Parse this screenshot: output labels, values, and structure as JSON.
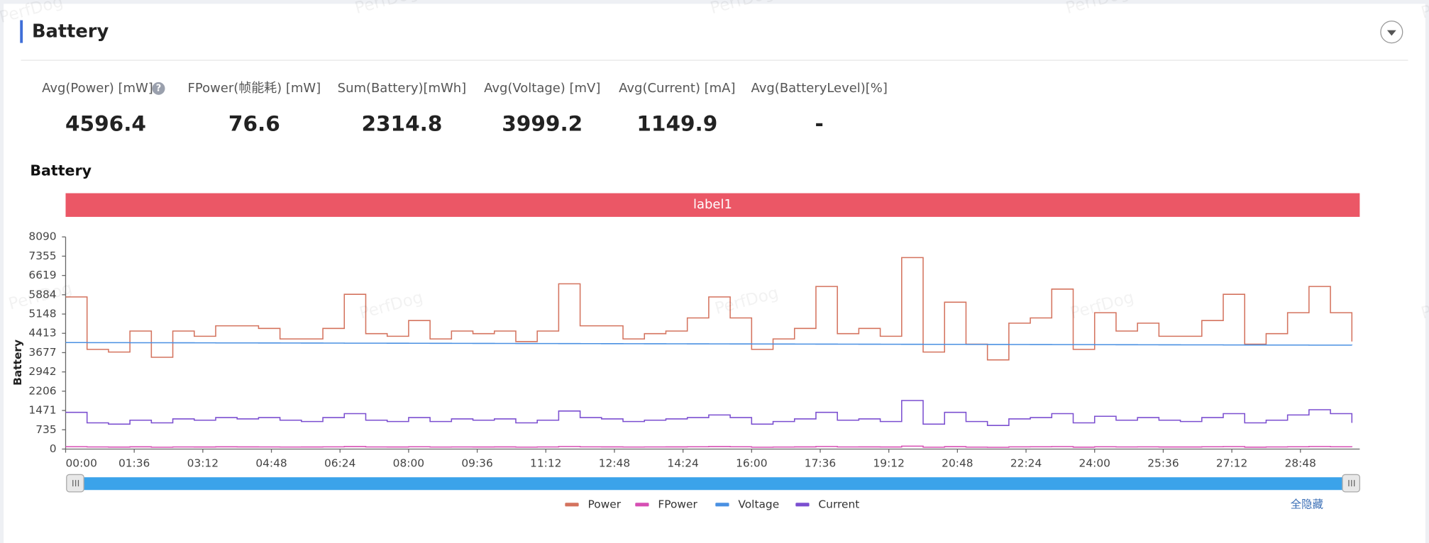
{
  "panel": {
    "title": "Battery",
    "watermark": "PerfDog",
    "metrics": [
      {
        "label": "Avg(Power) [mW]",
        "value": 4596.4
      },
      {
        "label": "FPower(帧能耗) [mW]",
        "value": 76.6
      },
      {
        "label": "Sum(Battery)[mWh]",
        "value": 2314.8
      },
      {
        "label": "Avg(Voltage) [mV]",
        "value": 3999.2
      },
      {
        "label": "Avg(Current) [mA]",
        "value": 1149.9
      },
      {
        "label": "Avg(BatteryLevel)[%]",
        "value": "-"
      }
    ],
    "hide_all": "全隐藏"
  },
  "chart_data": {
    "type": "line",
    "title": "Battery",
    "banner": "label1",
    "y_label": "Battery",
    "x": [
      0,
      30,
      60,
      90,
      120,
      150,
      180,
      210,
      240,
      270,
      300,
      330,
      360,
      390,
      420,
      450,
      480,
      510,
      540,
      570,
      600,
      630,
      660,
      690,
      720,
      750,
      780,
      810,
      840,
      870,
      900,
      930,
      960,
      990,
      1020,
      1050,
      1080,
      1110,
      1140,
      1170,
      1200,
      1230,
      1260,
      1290,
      1320,
      1350,
      1380,
      1410,
      1440,
      1470,
      1500,
      1530,
      1560,
      1590,
      1620,
      1650,
      1680,
      1710,
      1740,
      1770,
      1800
    ],
    "xlim": [
      0,
      1811
    ],
    "xticks": [
      {
        "value": 0,
        "label": "00:00"
      },
      {
        "value": 96,
        "label": "01:36"
      },
      {
        "value": 192,
        "label": "03:12"
      },
      {
        "value": 288,
        "label": "04:48"
      },
      {
        "value": 384,
        "label": "06:24"
      },
      {
        "value": 480,
        "label": "08:00"
      },
      {
        "value": 576,
        "label": "09:36"
      },
      {
        "value": 672,
        "label": "11:12"
      },
      {
        "value": 768,
        "label": "12:48"
      },
      {
        "value": 864,
        "label": "14:24"
      },
      {
        "value": 960,
        "label": "16:00"
      },
      {
        "value": 1056,
        "label": "17:36"
      },
      {
        "value": 1152,
        "label": "19:12"
      },
      {
        "value": 1248,
        "label": "20:48"
      },
      {
        "value": 1344,
        "label": "22:24"
      },
      {
        "value": 1440,
        "label": "24:00"
      },
      {
        "value": 1536,
        "label": "25:36"
      },
      {
        "value": 1632,
        "label": "27:12"
      },
      {
        "value": 1728,
        "label": "28:48"
      }
    ],
    "ylim": [
      0,
      8090
    ],
    "yticks": [
      0,
      735,
      1471,
      2206,
      2942,
      3677,
      4413,
      5148,
      5884,
      6619,
      7355,
      8090
    ],
    "grid": false,
    "series": [
      {
        "name": "Power",
        "color": "#d4735e",
        "values": [
          5800,
          3800,
          3700,
          4500,
          3500,
          4500,
          4300,
          4700,
          4700,
          4600,
          4200,
          4200,
          4600,
          5900,
          4400,
          4300,
          4900,
          4200,
          4500,
          4400,
          4500,
          4100,
          4500,
          6300,
          4700,
          4700,
          4200,
          4400,
          4500,
          5000,
          5800,
          5000,
          3800,
          4200,
          4600,
          6200,
          4400,
          4600,
          4300,
          7300,
          3700,
          5600,
          4000,
          3400,
          4800,
          5000,
          6100,
          3800,
          5200,
          4500,
          4800,
          4300,
          4300,
          4900,
          5900,
          4000,
          4400,
          5200,
          6200,
          5200,
          4100
        ]
      },
      {
        "name": "FPower",
        "color": "#d64fb4",
        "values": [
          90,
          80,
          75,
          85,
          70,
          80,
          78,
          85,
          82,
          80,
          76,
          78,
          84,
          95,
          80,
          78,
          86,
          76,
          80,
          79,
          82,
          74,
          80,
          98,
          84,
          82,
          76,
          80,
          82,
          88,
          95,
          86,
          70,
          76,
          82,
          96,
          80,
          82,
          78,
          110,
          70,
          92,
          74,
          66,
          84,
          86,
          94,
          72,
          88,
          80,
          84,
          78,
          78,
          86,
          94,
          72,
          80,
          88,
          98,
          88,
          74
        ]
      },
      {
        "name": "Voltage",
        "color": "#4a90e2",
        "values": [
          4060,
          4058,
          4057,
          4055,
          4053,
          4052,
          4050,
          4048,
          4047,
          4045,
          4043,
          4042,
          4040,
          4038,
          4037,
          4035,
          4033,
          4032,
          4030,
          4028,
          4027,
          4025,
          4023,
          4022,
          4020,
          4018,
          4017,
          4015,
          4013,
          4012,
          4010,
          4008,
          4007,
          4005,
          4003,
          4002,
          4000,
          3998,
          3997,
          3995,
          3993,
          3992,
          3990,
          3988,
          3987,
          3985,
          3983,
          3982,
          3980,
          3978,
          3977,
          3975,
          3973,
          3972,
          3970,
          3968,
          3967,
          3965,
          3963,
          3962,
          3960
        ]
      },
      {
        "name": "Current",
        "color": "#7b4fd0",
        "values": [
          1400,
          1000,
          950,
          1100,
          1000,
          1150,
          1100,
          1200,
          1150,
          1200,
          1100,
          1050,
          1200,
          1350,
          1100,
          1050,
          1200,
          1050,
          1150,
          1100,
          1150,
          1000,
          1100,
          1450,
          1200,
          1150,
          1050,
          1100,
          1150,
          1200,
          1300,
          1200,
          950,
          1050,
          1150,
          1400,
          1100,
          1150,
          1050,
          1850,
          950,
          1400,
          1050,
          900,
          1150,
          1200,
          1350,
          1000,
          1250,
          1100,
          1200,
          1100,
          1050,
          1200,
          1350,
          1000,
          1100,
          1300,
          1500,
          1350,
          1000
        ]
      }
    ]
  }
}
